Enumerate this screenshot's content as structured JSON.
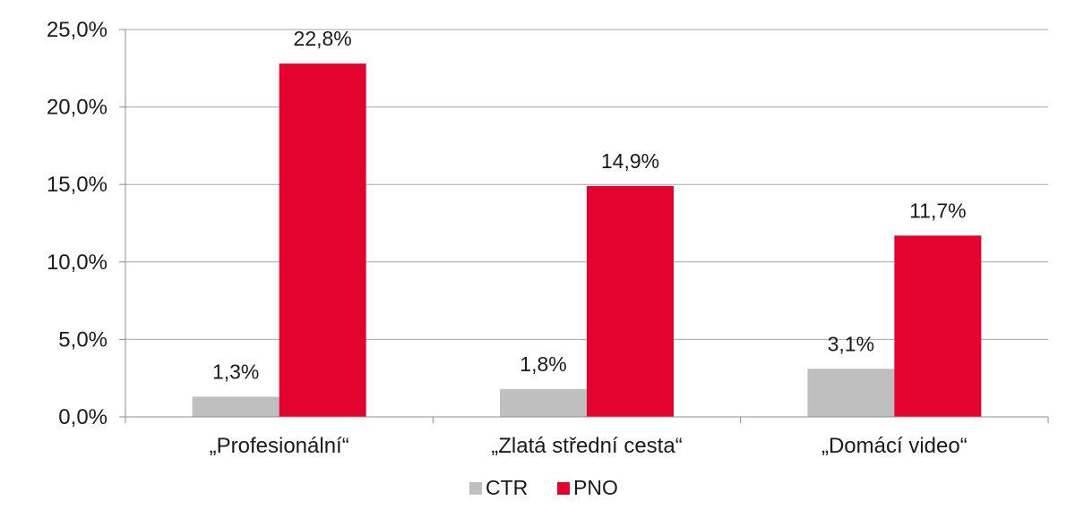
{
  "chart_data": {
    "type": "bar",
    "categories": [
      "„Profesionální“",
      "„Zlatá střední cesta“",
      "„Domácí video“"
    ],
    "series": [
      {
        "name": "CTR",
        "color": "#bfbfbf",
        "values": [
          1.3,
          1.8,
          3.1
        ],
        "labels": [
          "1,3%",
          "1,8%",
          "3,1%"
        ]
      },
      {
        "name": "PNO",
        "color": "#e4032e",
        "values": [
          22.8,
          14.9,
          11.7
        ],
        "labels": [
          "22,8%",
          "14,9%",
          "11,7%"
        ]
      }
    ],
    "yticks": [
      0,
      5,
      10,
      15,
      20,
      25
    ],
    "ytick_labels": [
      "0,0%",
      "5,0%",
      "10,0%",
      "15,0%",
      "20,0%",
      "25,0%"
    ],
    "ylim": [
      0,
      25
    ],
    "grid": true,
    "legend_position": "bottom"
  }
}
